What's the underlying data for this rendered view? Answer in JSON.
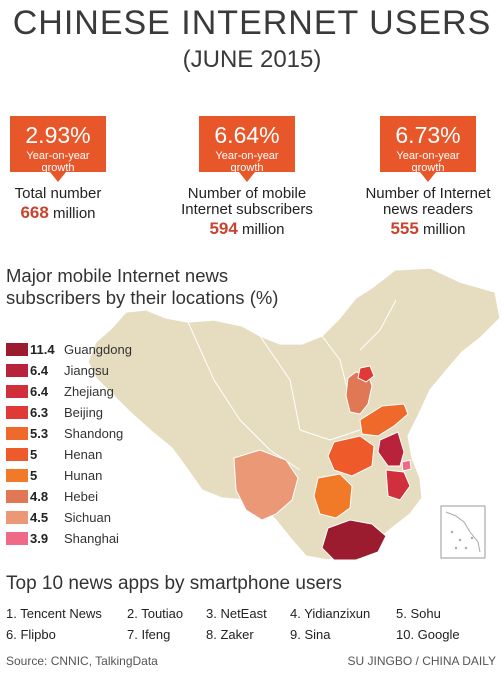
{
  "header": {
    "title": "CHINESE INTERNET USERS",
    "subtitle": "(JUNE 2015)"
  },
  "colors": {
    "accent": "#e8572a",
    "number": "#c9432e",
    "map_base": "#e6dcc0"
  },
  "stats": [
    {
      "pct": "2.93%",
      "caption": "Year-on-year growth",
      "label": "Total number",
      "value": "668",
      "unit": "million"
    },
    {
      "pct": "6.64%",
      "caption": "Year-on-year growth",
      "label": "Number of mobile Internet subscribers",
      "value": "594",
      "unit": "million"
    },
    {
      "pct": "6.73%",
      "caption": "Year-on-year growth",
      "label": "Number of Internet news readers",
      "value": "555",
      "unit": "million"
    }
  ],
  "chart_data": {
    "type": "table",
    "title": "Major mobile Internet news subscribers by their locations (%)",
    "categories": [
      "Guangdong",
      "Jiangsu",
      "Zhejiang",
      "Beijing",
      "Shandong",
      "Henan",
      "Hunan",
      "Hebei",
      "Sichuan",
      "Shanghai"
    ],
    "values": [
      11.4,
      6.4,
      6.4,
      6.3,
      5.3,
      5,
      5,
      4.8,
      4.5,
      3.9
    ],
    "value_labels": [
      "11.4",
      "6.4",
      "6.4",
      "6.3",
      "5.3",
      "5",
      "5",
      "4.8",
      "4.5",
      "3.9"
    ],
    "colors": [
      "#9b1c2e",
      "#b8223a",
      "#d02f3c",
      "#e03a36",
      "#ef6a2a",
      "#ee5a2a",
      "#f07a28",
      "#e07755",
      "#eb9876",
      "#ef6a88"
    ]
  },
  "apps": {
    "title": "Top 10 news apps by smartphone users",
    "items": [
      "1. Tencent News",
      "2. Toutiao",
      "3. NetEast",
      "4. Yidianzixun",
      "5. Sohu",
      "6. Flipbo",
      "7. Ifeng",
      "8. Zaker",
      "9. Sina",
      "10. Google"
    ]
  },
  "footer": {
    "source": "Source: CNNIC, TalkingData",
    "credit": "SU JINGBO / CHINA DAILY"
  }
}
